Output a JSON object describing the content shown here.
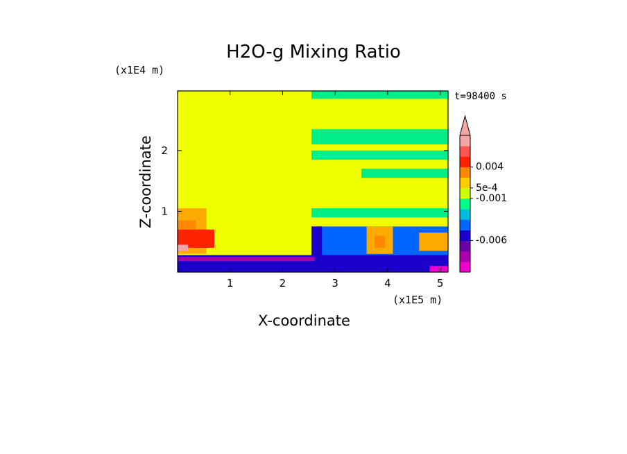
{
  "chart_data": {
    "type": "heatmap",
    "title": "H2O-g Mixing Ratio",
    "xlabel": "X-coordinate",
    "ylabel": "Z-coordinate",
    "x_unit": "(x1E5 m)",
    "y_unit": "(x1E4 m)",
    "time_label": "t=98400 s",
    "xlim": [
      0,
      5.15
    ],
    "ylim": [
      0,
      2.98
    ],
    "x_ticks": [
      "1",
      "2",
      "3",
      "4",
      "5"
    ],
    "y_ticks": [
      "1",
      "2"
    ],
    "colorbar": {
      "colors": [
        "#ee00cc",
        "#aa00aa",
        "#6a00a8",
        "#1a00c8",
        "#0066ff",
        "#00bbdd",
        "#00ff88",
        "#ccff00",
        "#ffcc00",
        "#ff8800",
        "#ff2200",
        "#ff5555",
        "#f4a6a6"
      ],
      "labels": [
        "0.004",
        "5e-4",
        "-0.001",
        "-0.006"
      ],
      "extend": "top"
    },
    "regions": [
      {
        "color": "#f0ff00",
        "x0": 0.0,
        "x1": 5.15,
        "y0": 0.0,
        "y1": 2.98
      },
      {
        "color": "#ffaa00",
        "x0": 0.0,
        "x1": 0.55,
        "y0": 0.3,
        "y1": 1.05
      },
      {
        "color": "#ff2200",
        "x0": 0.0,
        "x1": 0.7,
        "y0": 0.4,
        "y1": 0.7
      },
      {
        "color": "#f4a6a6",
        "x0": 0.0,
        "x1": 0.2,
        "y0": 0.35,
        "y1": 0.45
      },
      {
        "color": "#ff8800",
        "x0": 0.0,
        "x1": 0.35,
        "y0": 0.7,
        "y1": 0.85
      },
      {
        "color": "#00ee88",
        "x0": 2.55,
        "x1": 5.15,
        "y0": 2.85,
        "y1": 2.98
      },
      {
        "color": "#00ee88",
        "x0": 2.55,
        "x1": 5.15,
        "y0": 2.1,
        "y1": 2.35
      },
      {
        "color": "#00ee88",
        "x0": 2.55,
        "x1": 5.15,
        "y0": 1.85,
        "y1": 2.0
      },
      {
        "color": "#00ee88",
        "x0": 3.5,
        "x1": 5.15,
        "y0": 1.55,
        "y1": 1.7
      },
      {
        "color": "#00ee88",
        "x0": 2.55,
        "x1": 5.15,
        "y0": 0.9,
        "y1": 1.05
      },
      {
        "color": "#0066ff",
        "x0": 2.55,
        "x1": 5.15,
        "y0": 0.2,
        "y1": 0.75
      },
      {
        "color": "#1a00c8",
        "x0": 2.55,
        "x1": 2.75,
        "y0": 0.2,
        "y1": 0.75
      },
      {
        "color": "#ffaa00",
        "x0": 3.6,
        "x1": 4.1,
        "y0": 0.3,
        "y1": 0.75
      },
      {
        "color": "#ff8800",
        "x0": 3.75,
        "x1": 3.95,
        "y0": 0.4,
        "y1": 0.6
      },
      {
        "color": "#ffaa00",
        "x0": 4.6,
        "x1": 5.15,
        "y0": 0.35,
        "y1": 0.65
      },
      {
        "color": "#1a00c8",
        "x0": 0.0,
        "x1": 5.15,
        "y0": 0.0,
        "y1": 0.28
      },
      {
        "color": "#aa00aa",
        "x0": 0.0,
        "x1": 2.6,
        "y0": 0.18,
        "y1": 0.25
      },
      {
        "color": "#ee00cc",
        "x0": 4.8,
        "x1": 5.15,
        "y0": 0.0,
        "y1": 0.1
      }
    ]
  }
}
